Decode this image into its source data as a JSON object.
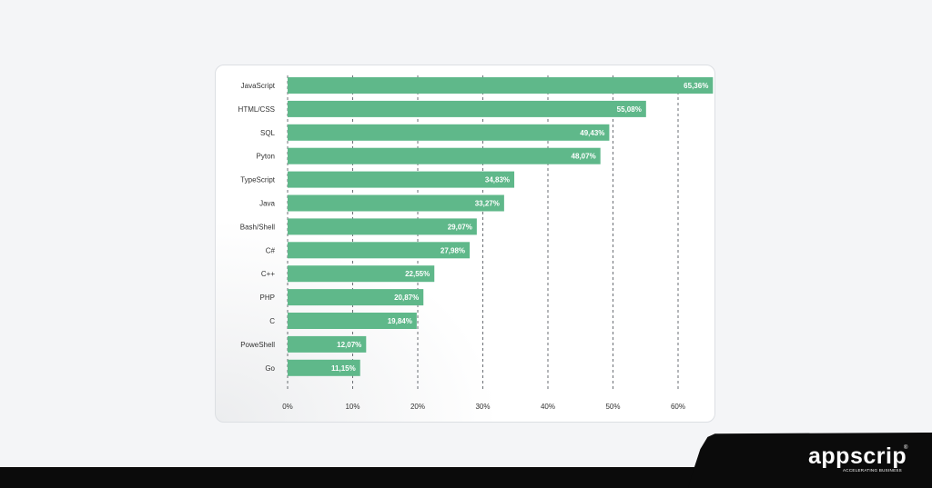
{
  "chart_data": {
    "type": "bar",
    "orientation": "horizontal",
    "categories": [
      "JavaScript",
      "HTML/CSS",
      "SQL",
      "Pyton",
      "TypeScript",
      "Java",
      "Bash/Shell",
      "C#",
      "C++",
      "PHP",
      "C",
      "PoweShell",
      "Go"
    ],
    "values": [
      65.36,
      55.08,
      49.43,
      48.07,
      34.83,
      33.27,
      29.07,
      27.98,
      22.55,
      20.87,
      19.84,
      12.07,
      11.15
    ],
    "value_labels": [
      "65,36%",
      "55,08%",
      "49,43%",
      "48,07%",
      "34,83%",
      "33,27%",
      "29,07%",
      "27,98%",
      "22,55%",
      "20,87%",
      "19,84%",
      "12,07%",
      "11,15%"
    ],
    "x_ticks": [
      "0%",
      "10%",
      "20%",
      "30%",
      "40%",
      "50%",
      "60%"
    ],
    "xlim": [
      0,
      60
    ],
    "title": "",
    "xlabel": "",
    "ylabel": "",
    "grid": "vertical dashed",
    "legend": "none",
    "bar_color": "#5fb88a",
    "grid_color": "#6b6f75"
  },
  "brand": {
    "name": "appscrip",
    "registered": "®",
    "tagline": "ACCELERATING BUSINESS",
    "color": "#ffffff"
  }
}
